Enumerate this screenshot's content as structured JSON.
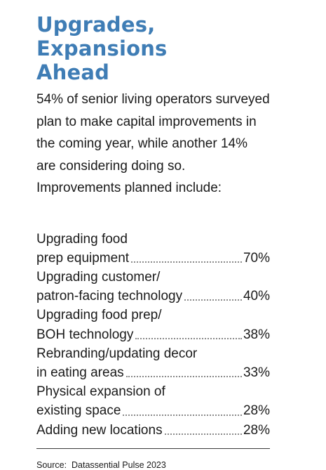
{
  "headline": [
    "Upgrades, Expansions",
    "Ahead"
  ],
  "intro": "54% of senior living operators surveyed plan to make capital improvements in the coming year, while another 14% are considering doing so. Improvements planned include:",
  "items": [
    {
      "lines": [
        "Upgrading food",
        "prep equipment"
      ],
      "value": "70%"
    },
    {
      "lines": [
        "Upgrading customer/",
        "patron-facing technology"
      ],
      "value": "40%"
    },
    {
      "lines": [
        "Upgrading food prep/",
        "BOH technology"
      ],
      "value": "38%"
    },
    {
      "lines": [
        "Rebranding/updating decor",
        "in eating areas"
      ],
      "value": "33%"
    },
    {
      "lines": [
        "Physical expansion of",
        "existing space"
      ],
      "value": "28%"
    },
    {
      "lines": [
        "Adding new locations"
      ],
      "value": "28%"
    }
  ],
  "source": "Source:  Datassential Pulse 2023"
}
